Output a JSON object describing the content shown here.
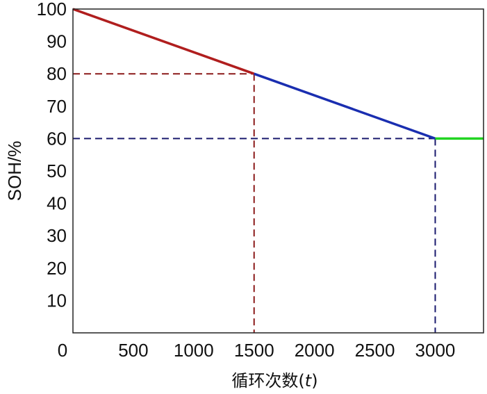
{
  "chart_data": {
    "type": "line",
    "xlabel": "循环次数(t)",
    "xlabel_main": "循环次数(",
    "xlabel_var": "t",
    "xlabel_end": ")",
    "ylabel": "SOH/%",
    "xlim": [
      0,
      3400
    ],
    "ylim": [
      0,
      100
    ],
    "xticks": [
      0,
      500,
      1000,
      1500,
      2000,
      2500,
      3000
    ],
    "yticks": [
      10,
      20,
      30,
      40,
      50,
      60,
      70,
      80,
      90,
      100
    ],
    "grid": false,
    "series": [
      {
        "x": [
          0,
          1500
        ],
        "y": [
          100,
          80
        ],
        "color": "#b01e1e"
      },
      {
        "x": [
          1500,
          3000
        ],
        "y": [
          80,
          60
        ],
        "color": "#1a2eb0"
      },
      {
        "x": [
          3000,
          3400
        ],
        "y": [
          60,
          60
        ],
        "color": "#22d422"
      }
    ],
    "reference_lines": [
      {
        "points": [
          [
            0,
            80
          ],
          [
            1500,
            80
          ]
        ],
        "color": "#8b1a1a",
        "style": "dashed"
      },
      {
        "points": [
          [
            1500,
            80
          ],
          [
            1500,
            0
          ]
        ],
        "color": "#8b1a1a",
        "style": "dashed"
      },
      {
        "points": [
          [
            0,
            60
          ],
          [
            3000,
            60
          ]
        ],
        "color": "#1a1a6e",
        "style": "dashed"
      },
      {
        "points": [
          [
            3000,
            60
          ],
          [
            3000,
            0
          ]
        ],
        "color": "#1a1a6e",
        "style": "dashed"
      }
    ]
  }
}
